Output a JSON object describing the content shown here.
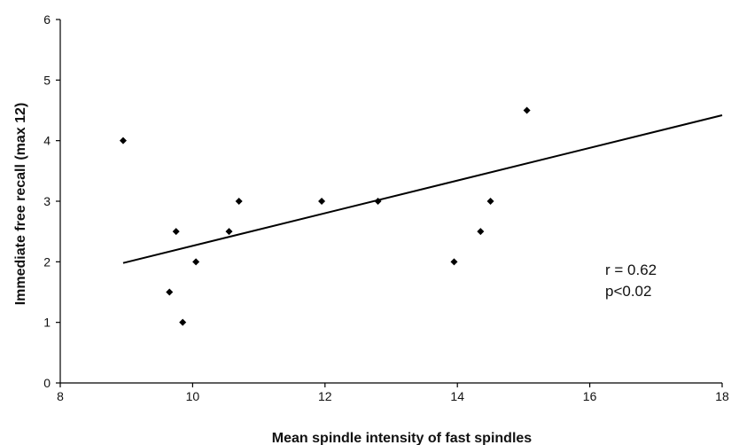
{
  "chart_data": {
    "type": "scatter",
    "title": "",
    "xlabel": "Mean spindle intensity of fast spindles",
    "ylabel": "Immediate free recall (max 12)",
    "xlim": [
      8,
      18
    ],
    "ylim": [
      0,
      6
    ],
    "xticks": [
      "8",
      "10",
      "12",
      "14",
      "16",
      "18"
    ],
    "yticks": [
      "0",
      "1",
      "2",
      "3",
      "4",
      "5",
      "6"
    ],
    "grid": false,
    "legend": "none",
    "marker_color": "#000000",
    "points": [
      {
        "x": 8.95,
        "y": 4.0
      },
      {
        "x": 9.65,
        "y": 1.5
      },
      {
        "x": 9.75,
        "y": 2.5
      },
      {
        "x": 9.85,
        "y": 1.0
      },
      {
        "x": 10.05,
        "y": 2.0
      },
      {
        "x": 10.55,
        "y": 2.5
      },
      {
        "x": 10.7,
        "y": 3.0
      },
      {
        "x": 11.95,
        "y": 3.0
      },
      {
        "x": 12.8,
        "y": 3.0
      },
      {
        "x": 13.95,
        "y": 2.0
      },
      {
        "x": 14.35,
        "y": 2.5
      },
      {
        "x": 14.5,
        "y": 3.0
      },
      {
        "x": 15.05,
        "y": 4.5
      }
    ],
    "trendline": {
      "x": [
        8.95,
        18.0
      ],
      "y": [
        1.98,
        4.42
      ]
    },
    "annotations": [
      "r = 0.62",
      "p<0.02"
    ]
  }
}
